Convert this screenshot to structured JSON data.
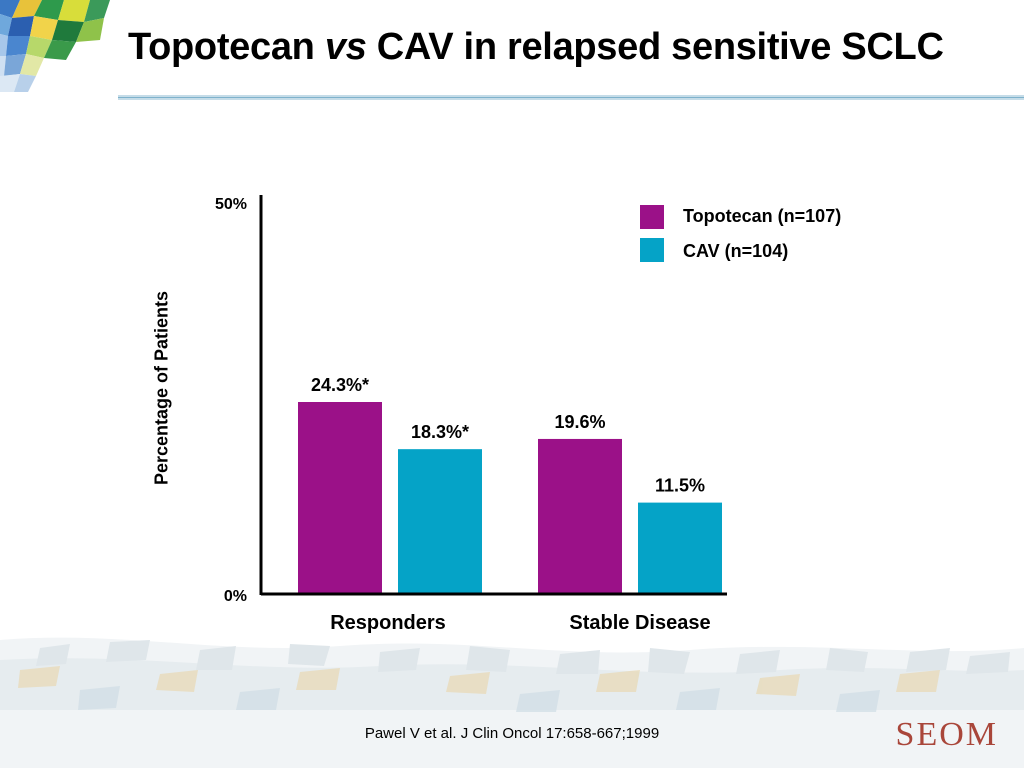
{
  "slide": {
    "title_prefix": "Topotecan ",
    "title_italic": "vs",
    "title_suffix": " CAV in relapsed sensitive SCLC",
    "citation": "Pawel V et al. J Clin Oncol 17:658-667;1999",
    "logo_text": "SEOM"
  },
  "chart_data": {
    "type": "bar",
    "title": "",
    "xlabel": "",
    "ylabel": "Percentage of Patients",
    "ylim": [
      0,
      50
    ],
    "yticks": [
      "0%",
      "50%"
    ],
    "categories": [
      "Responders",
      "Stable Disease"
    ],
    "series": [
      {
        "name": "Topotecan (n=107)",
        "color": "#9b1188",
        "values": [
          24.3,
          19.6
        ],
        "labels": [
          "24.3%*",
          "19.6%"
        ]
      },
      {
        "name": "CAV (n=104)",
        "color": "#05a3c7",
        "values": [
          18.3,
          11.5
        ],
        "labels": [
          "18.3%*",
          "11.5%"
        ]
      }
    ],
    "legend_position": "top-right",
    "grid": false
  }
}
